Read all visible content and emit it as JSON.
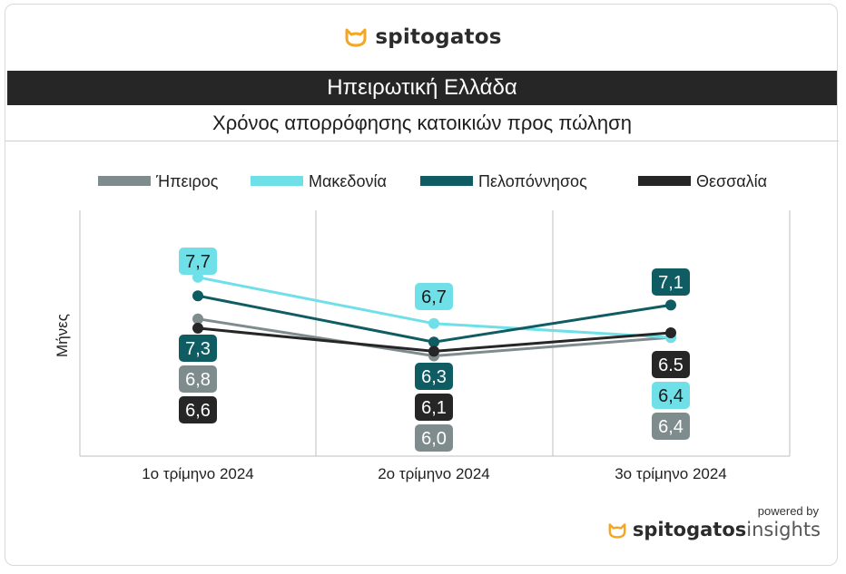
{
  "header": {
    "brand": "spitogatos",
    "region": "Ηπειρωτική Ελλάδα",
    "subtitle": "Χρόνος απορρόφησης κατοικιών προς πώληση"
  },
  "footer": {
    "powered_by": "powered by",
    "brand": "spitogatos",
    "brand_suffix": "insights"
  },
  "colors": {
    "accent_orange": "#f5a623",
    "region_bar": "#262626"
  },
  "chart_data": {
    "type": "line",
    "title": "Χρόνος απορρόφησης κατοικιών προς πώληση",
    "ylabel": "Μήνες",
    "xlabel": "",
    "categories": [
      "1ο τρίμηνο 2024",
      "2ο τρίμηνο 2024",
      "3ο τρίμηνο 2024"
    ],
    "legend_position": "top",
    "grid": "vertical",
    "series": [
      {
        "name": "Ήπειρος",
        "color": "#7f8c8d",
        "values": [
          6.8,
          6.0,
          6.4
        ],
        "labels": [
          "6,8",
          "6,0",
          "6,4"
        ]
      },
      {
        "name": "Μακεδονία",
        "color": "#6fe0e8",
        "values": [
          7.7,
          6.7,
          6.4
        ],
        "labels": [
          "7,7",
          "6,7",
          "6,4"
        ]
      },
      {
        "name": "Πελοπόννησος",
        "color": "#0f5c63",
        "values": [
          7.3,
          6.3,
          7.1
        ],
        "labels": [
          "7,3",
          "6,3",
          "7,1"
        ]
      },
      {
        "name": "Θεσσαλία",
        "color": "#262626",
        "values": [
          6.6,
          6.1,
          6.5
        ],
        "labels": [
          "6,6",
          "6,1",
          "6.5"
        ]
      }
    ]
  }
}
